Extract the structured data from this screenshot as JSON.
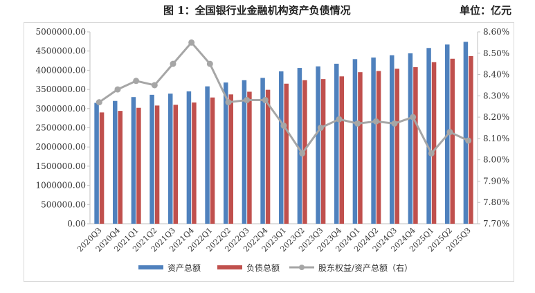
{
  "title": "图 1：全国银行业金融机构资产负债情况",
  "unit": "单位：亿元",
  "chart_data": {
    "type": "bar",
    "categories": [
      "2020Q3",
      "2020Q4",
      "2021Q1",
      "2021Q2",
      "2021Q3",
      "2021Q4",
      "2022Q1",
      "2022Q2",
      "2022Q3",
      "2022Q4",
      "2023Q1",
      "2023Q2",
      "2023Q3",
      "2023Q4",
      "2024Q1",
      "2024Q2",
      "2024Q3",
      "2024Q4",
      "2025Q1",
      "2025Q2",
      "2025Q3"
    ],
    "series": [
      {
        "name": "资产总额",
        "type": "bar",
        "axis": "left",
        "color": "#4f81bd",
        "values": [
          3150000,
          3200000,
          3300000,
          3360000,
          3390000,
          3450000,
          3580000,
          3680000,
          3740000,
          3800000,
          3970000,
          4060000,
          4100000,
          4170000,
          4290000,
          4330000,
          4390000,
          4440000,
          4580000,
          4670000,
          4740000
        ]
      },
      {
        "name": "负债总额",
        "type": "bar",
        "axis": "left",
        "color": "#c0504d",
        "values": [
          2900000,
          2940000,
          3020000,
          3080000,
          3100000,
          3160000,
          3290000,
          3370000,
          3440000,
          3490000,
          3650000,
          3740000,
          3770000,
          3840000,
          3950000,
          3980000,
          4040000,
          4080000,
          4210000,
          4300000,
          4370000
        ]
      },
      {
        "name": "股东权益/资产总额（右）",
        "type": "line",
        "axis": "right",
        "color": "#a6a6a6",
        "values": [
          8.27,
          8.33,
          8.37,
          8.35,
          8.45,
          8.55,
          8.45,
          8.27,
          8.28,
          8.28,
          8.16,
          8.03,
          8.15,
          8.19,
          8.17,
          8.18,
          8.17,
          8.2,
          8.03,
          8.13,
          8.09
        ]
      }
    ],
    "y_left": {
      "min": 0,
      "max": 5000000,
      "step": 500000,
      "tick_labels": [
        "0.00",
        "500000.00",
        "1000000.00",
        "1500000.00",
        "2000000.00",
        "2500000.00",
        "3000000.00",
        "3500000.00",
        "4000000.00",
        "4500000.00",
        "5000000.00"
      ]
    },
    "y_right": {
      "min": 7.7,
      "max": 8.6,
      "step": 0.1,
      "tick_labels": [
        "7.70%",
        "7.80%",
        "7.90%",
        "8.00%",
        "8.10%",
        "8.20%",
        "8.30%",
        "8.40%",
        "8.50%",
        "8.60%"
      ]
    },
    "grid": false,
    "legend_position": "bottom"
  }
}
